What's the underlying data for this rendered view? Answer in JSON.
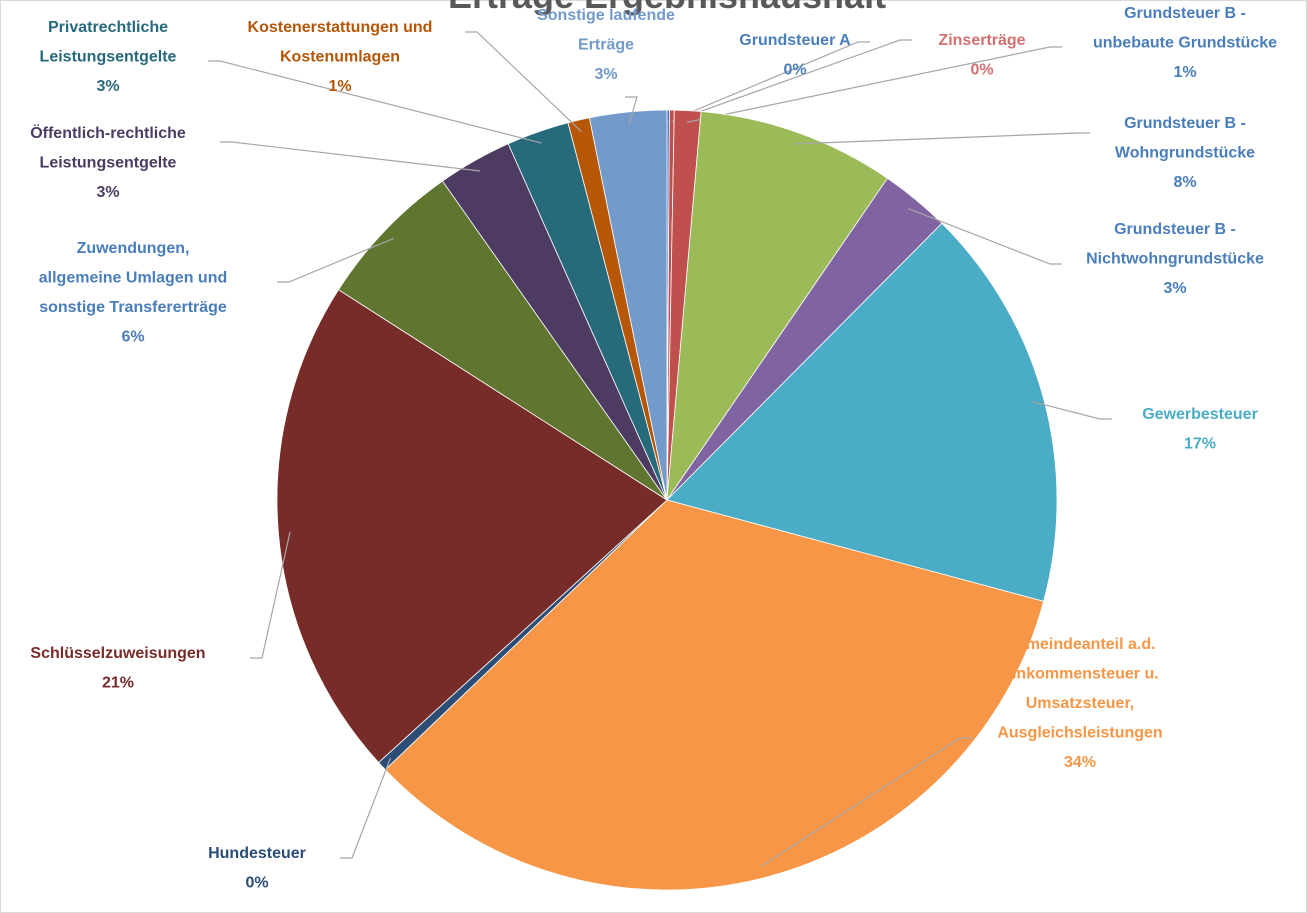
{
  "chart_data": {
    "type": "pie",
    "title": "Erträge Ergebnishaushalt",
    "categories": [
      "Grundsteuer A",
      "Zinserträge",
      "Grundsteuer B -\nunbebaute Grundstücke",
      "Grundsteuer B -\nWohngrundstücke",
      "Grundsteuer B -\nNichtwohngrundstücke",
      "Gewerbesteuer",
      "Gemeindeanteil a.d.\nEinkommensteuer u.\nUmsatzsteuer,\nAusgleichsleistungen",
      "Hundesteuer",
      "Schlüsselzuweisungen",
      "Zuwendungen,\nallgemeine Umlagen und\nsonstige Transfererträge",
      "Öffentlich-rechtliche\nLeistungsentgelte",
      "Privatrechtliche\nLeistungsentgelte",
      "Kostenerstattungen und\nKostenumlagen",
      "Sonstige laufende\nErträge"
    ],
    "values": [
      0.1,
      0.2,
      1.1,
      8.2,
      2.9,
      16.8,
      33.8,
      0.4,
      20.9,
      6.2,
      3.1,
      2.6,
      0.9,
      3.2
    ],
    "value_labels": [
      "0%",
      "0%",
      "1%",
      "8%",
      "3%",
      "17%",
      "34%",
      "0%",
      "21%",
      "6%",
      "3%",
      "3%",
      "1%",
      "3%"
    ],
    "colors": [
      "#4472c4",
      "#c0504d",
      "#c0504d",
      "#9bbb59",
      "#8064a2",
      "#4bacc6",
      "#f79646",
      "#2c4d75",
      "#772c2a",
      "#5f7530",
      "#4d3b62",
      "#276a7c",
      "#b65708",
      "#729aca"
    ],
    "label_colors": [
      "#4a7ebb",
      "#d07070",
      "#4a7ebb",
      "#4a7ebb",
      "#4a7ebb",
      "#4bacc6",
      "#f79646",
      "#2c4d75",
      "#772c2a",
      "#4a7ebb",
      "#4d3b62",
      "#276a7c",
      "#b65708",
      "#729aca"
    ]
  }
}
